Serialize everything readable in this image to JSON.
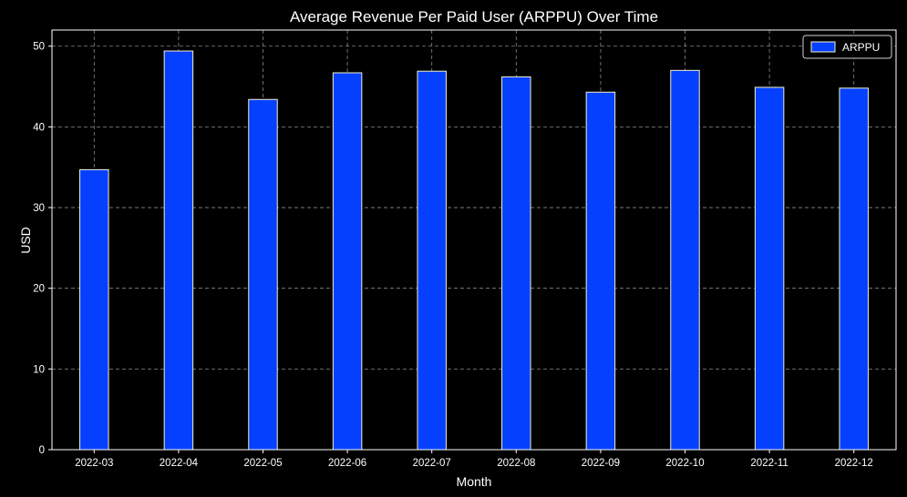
{
  "chart_data": {
    "type": "bar",
    "title": "Average Revenue Per Paid User (ARPPU) Over Time",
    "xlabel": "Month",
    "ylabel": "USD",
    "categories": [
      "2022-03",
      "2022-04",
      "2022-05",
      "2022-06",
      "2022-07",
      "2022-08",
      "2022-09",
      "2022-10",
      "2022-11",
      "2022-12"
    ],
    "series": [
      {
        "name": "ARPPU",
        "color": "#0640ff",
        "edge_color": "#f5f0c8",
        "values": [
          34.7,
          49.4,
          43.4,
          46.7,
          46.9,
          46.2,
          44.3,
          47.0,
          44.9,
          44.8
        ]
      }
    ],
    "ylim": [
      0,
      52
    ],
    "yticks": [
      0,
      10,
      20,
      30,
      40,
      50
    ],
    "grid": true,
    "legend_position": "top-right",
    "background": "#000000"
  }
}
